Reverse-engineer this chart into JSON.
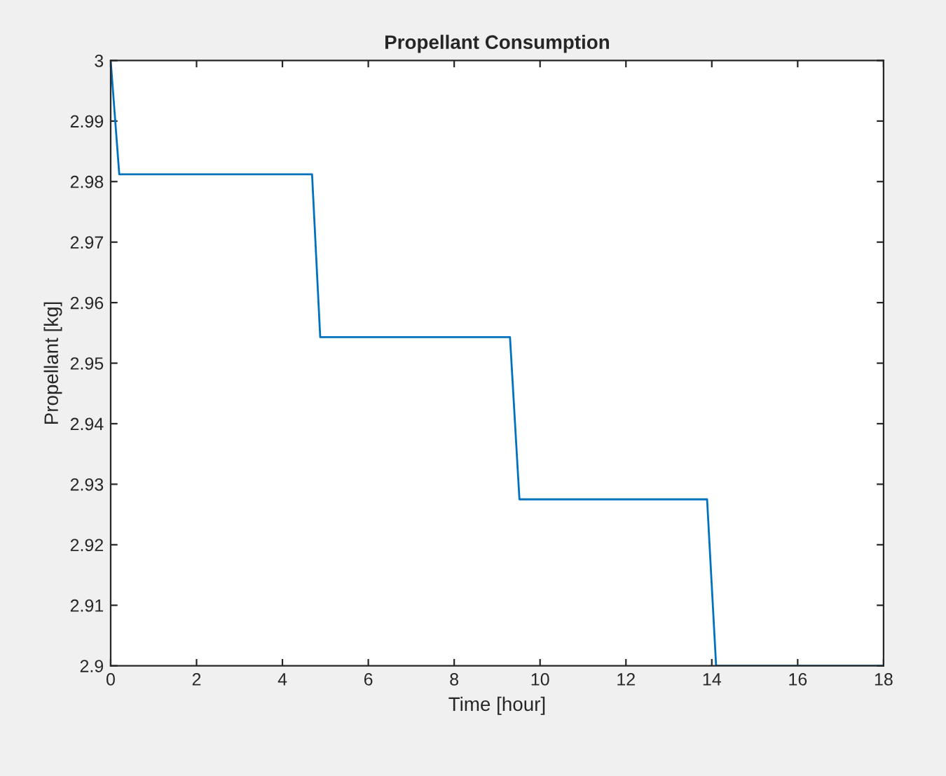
{
  "chart_data": {
    "type": "line",
    "title": "Propellant Consumption",
    "xlabel": "Time [hour]",
    "ylabel": "Propellant [kg]",
    "series": [
      {
        "color": "#0072bd",
        "x": [
          0,
          0.2,
          4.69,
          4.88,
          9.3,
          9.52,
          13.89,
          14.1,
          18
        ],
        "values": [
          3.0,
          2.9812,
          2.9812,
          2.9543,
          2.9543,
          2.9275,
          2.9275,
          2.9,
          2.9
        ]
      }
    ],
    "xlim": [
      0,
      18
    ],
    "xticks": [
      0,
      2,
      4,
      6,
      8,
      10,
      12,
      14,
      16,
      18
    ],
    "ylim": [
      2.9,
      3.0
    ],
    "yticks": [
      {
        "value": 2.9,
        "label": "2.9"
      },
      2.91,
      2.92,
      2.93,
      2.94,
      2.95,
      2.96,
      2.97,
      2.98,
      2.99,
      {
        "value": 3.0,
        "label": "3"
      }
    ],
    "grid": false,
    "legend": false,
    "line_style": "solid",
    "marker": "none"
  }
}
